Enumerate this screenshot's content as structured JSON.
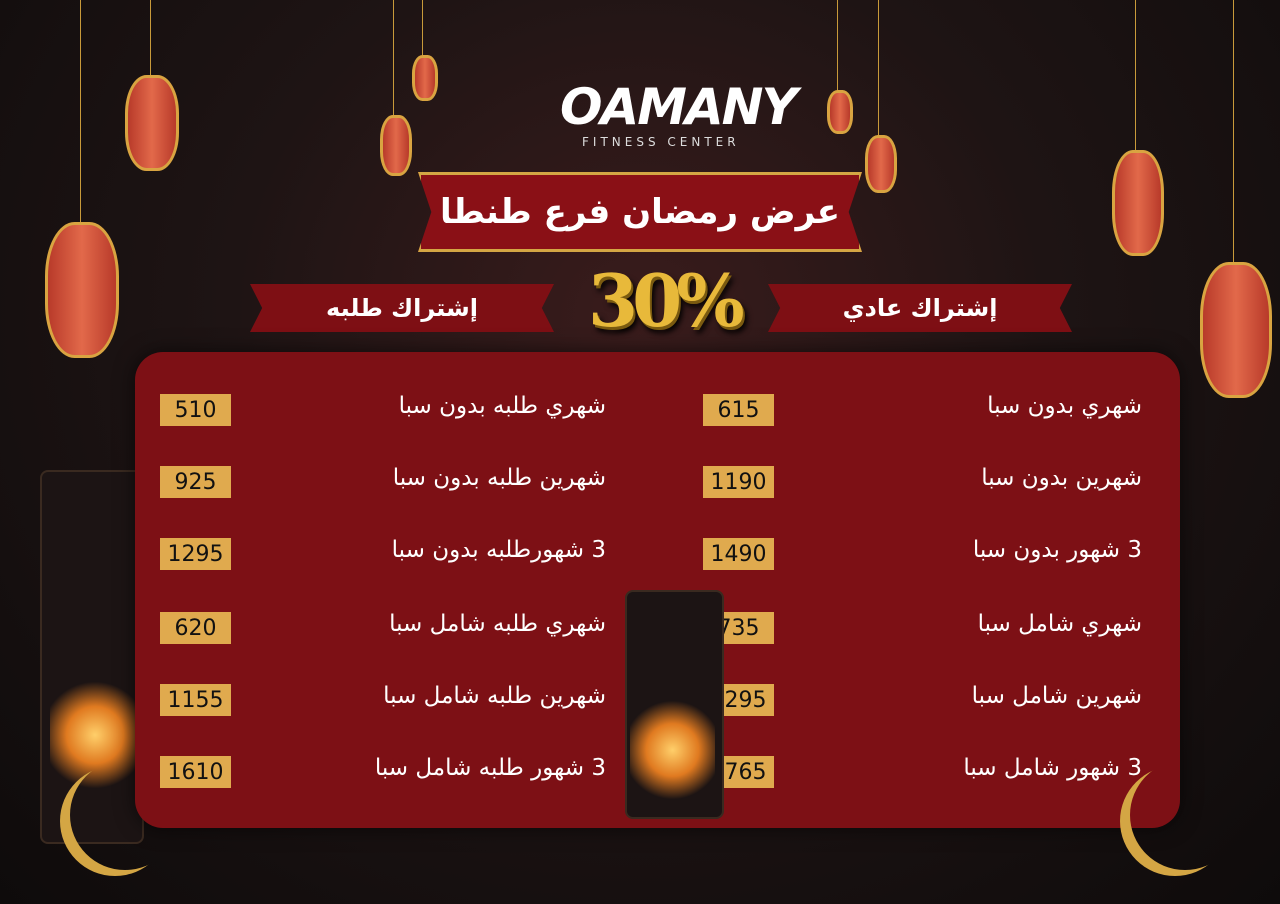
{
  "logo": {
    "name": "OAMANY",
    "subtitle": "FITNESS CENTER"
  },
  "title": "عرض رمضان فرع طنطا",
  "discount": "30%",
  "sections": {
    "regular": {
      "heading": "إشتراك عادي",
      "items": [
        {
          "label": "شهري بدون سبا",
          "price": "615"
        },
        {
          "label": "شهرين بدون سبا",
          "price": "1190"
        },
        {
          "label": "3 شهور بدون سبا",
          "price": "1490"
        },
        {
          "label": "شهري شامل سبا",
          "price": "735"
        },
        {
          "label": "شهرين شامل سبا",
          "price": "1295"
        },
        {
          "label": "3 شهور شامل سبا",
          "price": "1765"
        }
      ]
    },
    "student": {
      "heading": "إشتراك طلبه",
      "items": [
        {
          "label": "شهري طلبه بدون سبا",
          "price": "510"
        },
        {
          "label": "شهرين طلبه بدون سبا",
          "price": "925"
        },
        {
          "label": "3 شهورطلبه بدون سبا",
          "price": "1295"
        },
        {
          "label": "شهري طلبه شامل سبا",
          "price": "620"
        },
        {
          "label": "شهرين طلبه شامل سبا",
          "price": "1155"
        },
        {
          "label": "3 شهور طلبه شامل سبا",
          "price": "1610"
        }
      ]
    }
  },
  "colors": {
    "panel": "#7d1015",
    "price_box": "#e0aa4e",
    "gold": "#d4a644",
    "background": "#1a1313"
  }
}
